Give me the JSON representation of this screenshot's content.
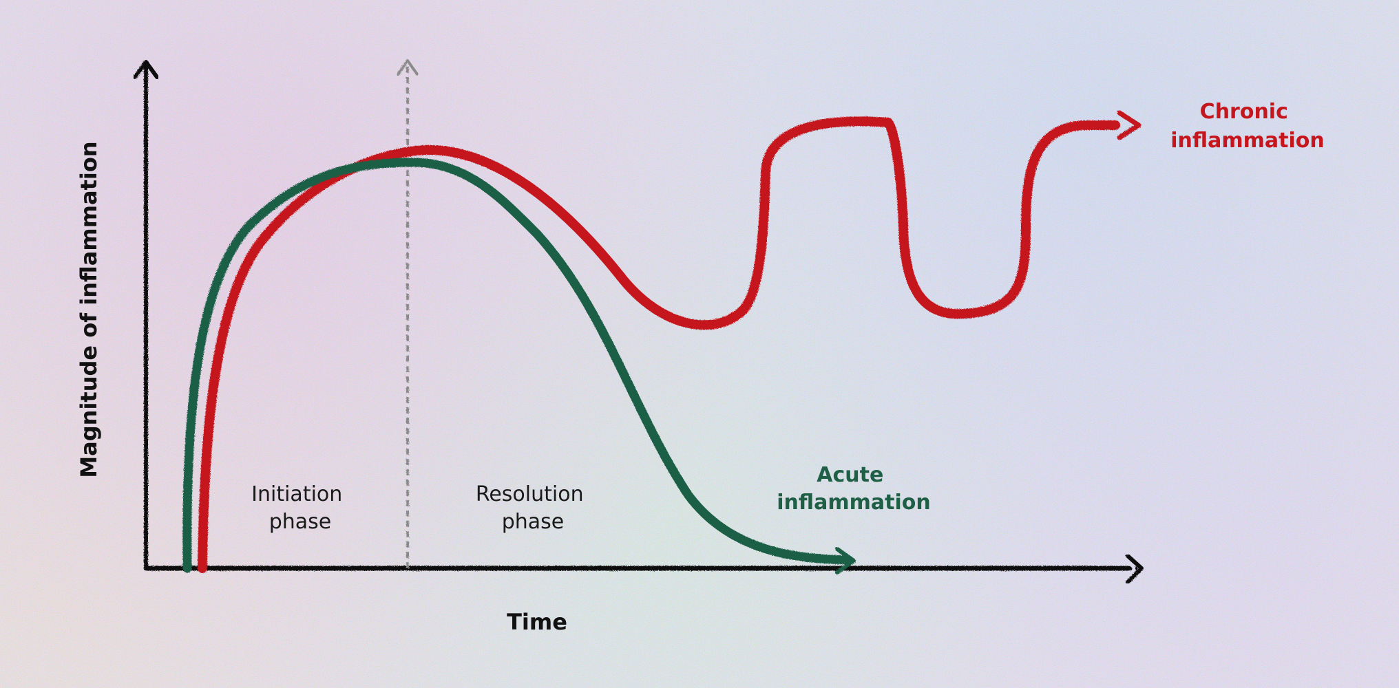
{
  "axes": {
    "y_label": "Magnitude of inflammation",
    "x_label": "Time"
  },
  "phases": {
    "initiation": [
      "Initiation",
      "phase"
    ],
    "resolution": [
      "Resolution",
      "phase"
    ]
  },
  "curves": {
    "acute": {
      "label": [
        "Acute",
        "inflammation"
      ],
      "color": "#1f5f46"
    },
    "chronic": {
      "label": [
        "Chronic",
        "inflammation"
      ],
      "color": "#c4161c"
    }
  },
  "colors": {
    "axis": "#111111",
    "divider": "#8a8a8a"
  }
}
